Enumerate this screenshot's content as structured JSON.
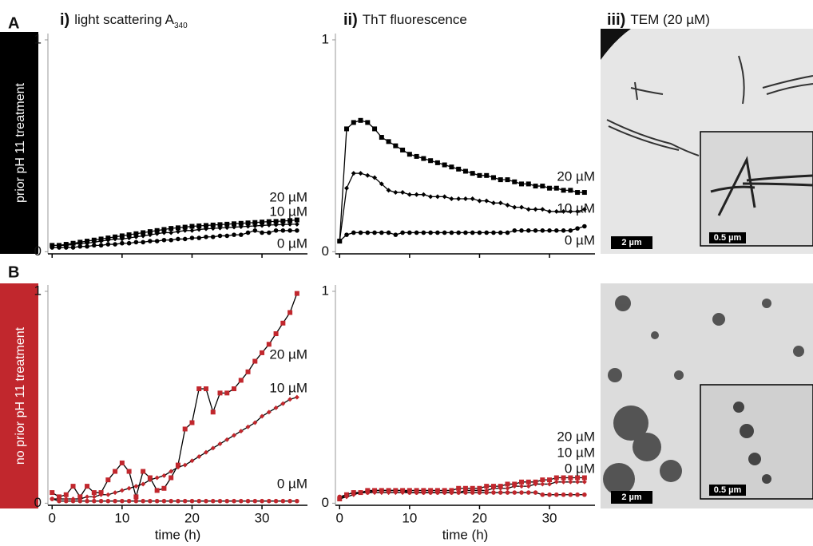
{
  "figure": {
    "panel_labels": [
      "A",
      "B"
    ],
    "row_labels": [
      "prior pH 11 treatment",
      "no prior pH 11  treatment"
    ],
    "column_titles": [
      {
        "number": "i)",
        "text": "light scattering A",
        "subscript": "340"
      },
      {
        "number": "ii)",
        "text": "ThT fluorescence"
      },
      {
        "number": "iii)",
        "text": "TEM (20 µM)"
      }
    ],
    "scale_bars": [
      [
        "2 µm",
        "0.5 µm"
      ],
      [
        "2 µm",
        "0.5 µm"
      ]
    ]
  },
  "chart_data": [
    {
      "type": "line",
      "x": [
        0,
        1,
        2,
        3,
        4,
        5,
        6,
        7,
        8,
        9,
        10,
        11,
        12,
        13,
        14,
        15,
        16,
        17,
        18,
        19,
        20,
        21,
        22,
        23,
        24,
        25,
        26,
        27,
        28,
        29,
        30,
        31,
        32,
        33,
        34,
        35
      ],
      "xlim": [
        -0.6,
        36.5
      ],
      "xticks": [
        0,
        10,
        20,
        30
      ],
      "show_xtick_labels": false,
      "ylim": [
        -0.01,
        1.03
      ],
      "yticks": [
        0,
        1
      ],
      "line_color": "#000000",
      "series": [
        {
          "name": "20 µM",
          "color": "#000000",
          "marker": "square",
          "values": [
            0.03,
            0.03,
            0.035,
            0.04,
            0.045,
            0.05,
            0.055,
            0.06,
            0.065,
            0.07,
            0.075,
            0.08,
            0.085,
            0.09,
            0.095,
            0.1,
            0.105,
            0.11,
            0.113,
            0.116,
            0.12,
            0.122,
            0.124,
            0.126,
            0.128,
            0.13,
            0.132,
            0.134,
            0.136,
            0.138,
            0.14,
            0.142,
            0.143,
            0.145,
            0.147,
            0.15
          ]
        },
        {
          "name": "10 µM",
          "color": "#000000",
          "marker": "diamond",
          "values": [
            0.03,
            0.03,
            0.03,
            0.035,
            0.04,
            0.04,
            0.045,
            0.05,
            0.055,
            0.06,
            0.06,
            0.065,
            0.07,
            0.075,
            0.08,
            0.085,
            0.09,
            0.09,
            0.095,
            0.1,
            0.1,
            0.105,
            0.108,
            0.11,
            0.112,
            0.114,
            0.116,
            0.118,
            0.12,
            0.122,
            0.124,
            0.126,
            0.127,
            0.128,
            0.13,
            0.13
          ]
        },
        {
          "name": "0 µM",
          "color": "#000000",
          "marker": "circle",
          "values": [
            0.02,
            0.02,
            0.02,
            0.02,
            0.025,
            0.025,
            0.03,
            0.03,
            0.035,
            0.035,
            0.04,
            0.04,
            0.045,
            0.045,
            0.05,
            0.05,
            0.055,
            0.055,
            0.06,
            0.06,
            0.065,
            0.065,
            0.07,
            0.07,
            0.075,
            0.075,
            0.08,
            0.08,
            0.09,
            0.1,
            0.09,
            0.09,
            0.1,
            0.1,
            0.1,
            0.1
          ]
        }
      ]
    },
    {
      "type": "line",
      "x": [
        0,
        1,
        2,
        3,
        4,
        5,
        6,
        7,
        8,
        9,
        10,
        11,
        12,
        13,
        14,
        15,
        16,
        17,
        18,
        19,
        20,
        21,
        22,
        23,
        24,
        25,
        26,
        27,
        28,
        29,
        30,
        31,
        32,
        33,
        34,
        35
      ],
      "xlim": [
        -0.6,
        36.5
      ],
      "xticks": [
        0,
        10,
        20,
        30
      ],
      "show_xtick_labels": false,
      "ylim": [
        -0.01,
        1.03
      ],
      "yticks": [
        0,
        1
      ],
      "line_color": "#000000",
      "series": [
        {
          "name": "20 µM",
          "color": "#000000",
          "marker": "square",
          "values": [
            0.05,
            0.58,
            0.61,
            0.62,
            0.61,
            0.58,
            0.54,
            0.52,
            0.5,
            0.48,
            0.46,
            0.45,
            0.44,
            0.43,
            0.42,
            0.41,
            0.4,
            0.39,
            0.38,
            0.37,
            0.36,
            0.36,
            0.35,
            0.34,
            0.34,
            0.33,
            0.32,
            0.32,
            0.31,
            0.31,
            0.3,
            0.3,
            0.29,
            0.29,
            0.28,
            0.28
          ]
        },
        {
          "name": "10 µM",
          "color": "#000000",
          "marker": "diamond",
          "values": [
            0.05,
            0.3,
            0.37,
            0.37,
            0.36,
            0.35,
            0.32,
            0.29,
            0.28,
            0.28,
            0.27,
            0.27,
            0.27,
            0.26,
            0.26,
            0.26,
            0.25,
            0.25,
            0.25,
            0.25,
            0.24,
            0.24,
            0.23,
            0.23,
            0.22,
            0.21,
            0.21,
            0.2,
            0.2,
            0.2,
            0.19,
            0.19,
            0.19,
            0.19,
            0.19,
            0.2
          ]
        },
        {
          "name": "0 µM",
          "color": "#000000",
          "marker": "circle",
          "values": [
            0.05,
            0.08,
            0.09,
            0.09,
            0.09,
            0.09,
            0.09,
            0.09,
            0.08,
            0.09,
            0.09,
            0.09,
            0.09,
            0.09,
            0.09,
            0.09,
            0.09,
            0.09,
            0.09,
            0.09,
            0.09,
            0.09,
            0.09,
            0.09,
            0.09,
            0.1,
            0.1,
            0.1,
            0.1,
            0.1,
            0.1,
            0.1,
            0.1,
            0.1,
            0.11,
            0.12
          ]
        }
      ]
    },
    {
      "type": "line",
      "x": [
        0,
        1,
        2,
        3,
        4,
        5,
        6,
        7,
        8,
        9,
        10,
        11,
        12,
        13,
        14,
        15,
        16,
        17,
        18,
        19,
        20,
        21,
        22,
        23,
        24,
        25,
        26,
        27,
        28,
        29,
        30,
        31,
        32,
        33,
        34,
        35
      ],
      "xlim": [
        -0.6,
        36.5
      ],
      "xticks": [
        0,
        10,
        20,
        30
      ],
      "show_xtick_labels": true,
      "x_label": "time (h)",
      "ylim": [
        -0.01,
        1.03
      ],
      "yticks": [
        0,
        1
      ],
      "line_color": "#000000",
      "series": [
        {
          "name": "20 µM",
          "color": "#c1272d",
          "marker": "square",
          "values": [
            0.05,
            0.03,
            0.04,
            0.08,
            0.03,
            0.08,
            0.05,
            0.05,
            0.11,
            0.15,
            0.19,
            0.15,
            0.03,
            0.15,
            0.12,
            0.06,
            0.07,
            0.12,
            0.18,
            0.35,
            0.38,
            0.54,
            0.54,
            0.43,
            0.52,
            0.52,
            0.54,
            0.58,
            0.62,
            0.67,
            0.71,
            0.75,
            0.8,
            0.85,
            0.9,
            0.99
          ]
        },
        {
          "name": "10 µM",
          "color": "#c1272d",
          "marker": "diamond",
          "values": [
            0.02,
            0.02,
            0.02,
            0.02,
            0.02,
            0.03,
            0.03,
            0.04,
            0.04,
            0.05,
            0.06,
            0.07,
            0.08,
            0.09,
            0.11,
            0.12,
            0.13,
            0.15,
            0.17,
            0.18,
            0.2,
            0.22,
            0.24,
            0.26,
            0.28,
            0.3,
            0.32,
            0.34,
            0.36,
            0.38,
            0.41,
            0.43,
            0.45,
            0.47,
            0.49,
            0.5
          ]
        },
        {
          "name": "0 µM",
          "color": "#c1272d",
          "marker": "circle",
          "values": [
            0.02,
            0.01,
            0.01,
            0.01,
            0.01,
            0.01,
            0.01,
            0.01,
            0.01,
            0.01,
            0.01,
            0.01,
            0.01,
            0.01,
            0.01,
            0.01,
            0.01,
            0.01,
            0.01,
            0.01,
            0.01,
            0.01,
            0.01,
            0.01,
            0.01,
            0.01,
            0.01,
            0.01,
            0.01,
            0.01,
            0.01,
            0.01,
            0.01,
            0.01,
            0.01,
            0.01
          ]
        }
      ]
    },
    {
      "type": "line",
      "x": [
        0,
        1,
        2,
        3,
        4,
        5,
        6,
        7,
        8,
        9,
        10,
        11,
        12,
        13,
        14,
        15,
        16,
        17,
        18,
        19,
        20,
        21,
        22,
        23,
        24,
        25,
        26,
        27,
        28,
        29,
        30,
        31,
        32,
        33,
        34,
        35
      ],
      "xlim": [
        -0.6,
        36.5
      ],
      "xticks": [
        0,
        10,
        20,
        30
      ],
      "show_xtick_labels": true,
      "x_label": "time (h)",
      "ylim": [
        -0.01,
        1.03
      ],
      "yticks": [
        0,
        1
      ],
      "line_color": "#000000",
      "series": [
        {
          "name": "20 µM",
          "color": "#c1272d",
          "marker": "square",
          "values": [
            0.02,
            0.04,
            0.05,
            0.05,
            0.06,
            0.06,
            0.06,
            0.06,
            0.06,
            0.06,
            0.06,
            0.06,
            0.06,
            0.06,
            0.06,
            0.06,
            0.06,
            0.07,
            0.07,
            0.07,
            0.07,
            0.08,
            0.08,
            0.08,
            0.09,
            0.09,
            0.1,
            0.1,
            0.1,
            0.11,
            0.11,
            0.12,
            0.12,
            0.12,
            0.12,
            0.12
          ]
        },
        {
          "name": "10 µM",
          "color": "#c1272d",
          "marker": "diamond",
          "values": [
            0.02,
            0.03,
            0.04,
            0.05,
            0.05,
            0.05,
            0.05,
            0.05,
            0.05,
            0.05,
            0.05,
            0.05,
            0.05,
            0.05,
            0.05,
            0.05,
            0.05,
            0.05,
            0.06,
            0.06,
            0.06,
            0.06,
            0.07,
            0.07,
            0.07,
            0.08,
            0.08,
            0.08,
            0.09,
            0.09,
            0.09,
            0.1,
            0.1,
            0.1,
            0.1,
            0.1
          ]
        },
        {
          "name": "0 µM",
          "color": "#c1272d",
          "marker": "circle",
          "values": [
            0.03,
            0.04,
            0.05,
            0.05,
            0.05,
            0.06,
            0.06,
            0.06,
            0.06,
            0.06,
            0.05,
            0.05,
            0.05,
            0.05,
            0.05,
            0.05,
            0.05,
            0.05,
            0.05,
            0.05,
            0.05,
            0.05,
            0.05,
            0.05,
            0.05,
            0.05,
            0.05,
            0.05,
            0.05,
            0.04,
            0.04,
            0.04,
            0.04,
            0.04,
            0.04,
            0.04
          ]
        }
      ]
    }
  ]
}
